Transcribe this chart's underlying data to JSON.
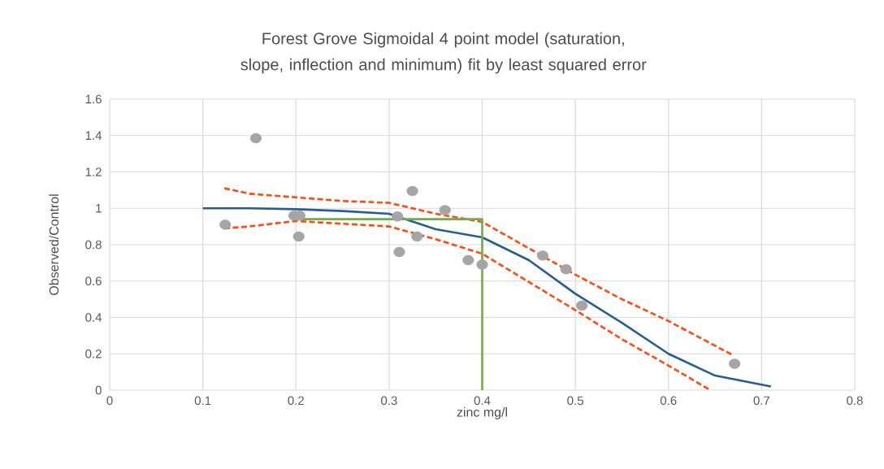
{
  "chart_data": {
    "type": "scatter",
    "title": "Forest Grove Sigmoidal 4 point model (saturation, slope, inflection and minimum) fit by least squared error",
    "xlabel": "zinc mg/l",
    "ylabel": "Observed/Control",
    "xlim": [
      0,
      0.8
    ],
    "xticks": [
      0,
      0.1,
      0.2,
      0.3,
      0.4,
      0.5,
      0.6,
      0.7,
      0.8
    ],
    "ylim": [
      0,
      1.6
    ],
    "yticks": [
      0,
      0.2,
      0.4,
      0.6,
      0.8,
      1,
      1.2,
      1.4,
      1.6
    ],
    "grid": true,
    "series": [
      {
        "type": "line",
        "color": "#255e91",
        "line_style": "solid",
        "marker": "none",
        "x": [
          0.1,
          0.15,
          0.2,
          0.25,
          0.3,
          0.35,
          0.4,
          0.45,
          0.5,
          0.55,
          0.6,
          0.65,
          0.7,
          0.71
        ],
        "values": [
          1.0,
          1.0,
          0.995,
          0.985,
          0.97,
          0.885,
          0.84,
          0.715,
          0.53,
          0.37,
          0.2,
          0.08,
          0.03,
          0.02
        ]
      },
      {
        "type": "line",
        "color": "#ff4a10",
        "line_style": "dashed",
        "marker": "none",
        "x": [
          0.123,
          0.15,
          0.2,
          0.25,
          0.3,
          0.35,
          0.4,
          0.45,
          0.5,
          0.55,
          0.6,
          0.67
        ],
        "values": [
          1.11,
          1.08,
          1.06,
          1.04,
          1.03,
          0.97,
          0.925,
          0.78,
          0.635,
          0.5,
          0.38,
          0.19
        ]
      },
      {
        "type": "line",
        "color": "#ff4a10",
        "line_style": "dashed",
        "marker": "none",
        "x": [
          0.123,
          0.15,
          0.2,
          0.25,
          0.3,
          0.35,
          0.4,
          0.45,
          0.5,
          0.55,
          0.6,
          0.645
        ],
        "values": [
          0.89,
          0.9,
          0.93,
          0.915,
          0.9,
          0.83,
          0.75,
          0.595,
          0.44,
          0.28,
          0.135,
          0
        ]
      },
      {
        "type": "line",
        "color": "#70ad47",
        "line_style": "solid",
        "marker": "none",
        "x": [
          0.2,
          0.4,
          0.4
        ],
        "values": [
          0.94,
          0.94,
          0
        ]
      },
      {
        "color": "#a5a5a5",
        "marker": "circle",
        "x": [
          0.124,
          0.157,
          0.198,
          0.204,
          0.203,
          0.309,
          0.325,
          0.311,
          0.33,
          0.36,
          0.385,
          0.4,
          0.465,
          0.49,
          0.507,
          0.671
        ],
        "values": [
          0.91,
          1.385,
          0.96,
          0.96,
          0.845,
          0.955,
          1.095,
          0.76,
          0.845,
          0.99,
          0.715,
          0.69,
          0.74,
          0.665,
          0.465,
          0.145
        ]
      }
    ]
  }
}
